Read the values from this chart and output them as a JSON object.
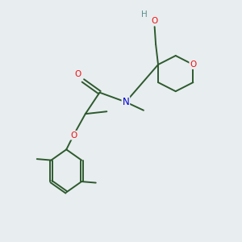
{
  "background_color": "#e8edf0",
  "bond_color": "#2d5a2d",
  "atom_colors": {
    "O": "#ee1111",
    "N": "#0000cc",
    "H": "#5a9090",
    "C": "#2d5a2d"
  },
  "figsize": [
    3.0,
    3.0
  ],
  "dpi": 100
}
